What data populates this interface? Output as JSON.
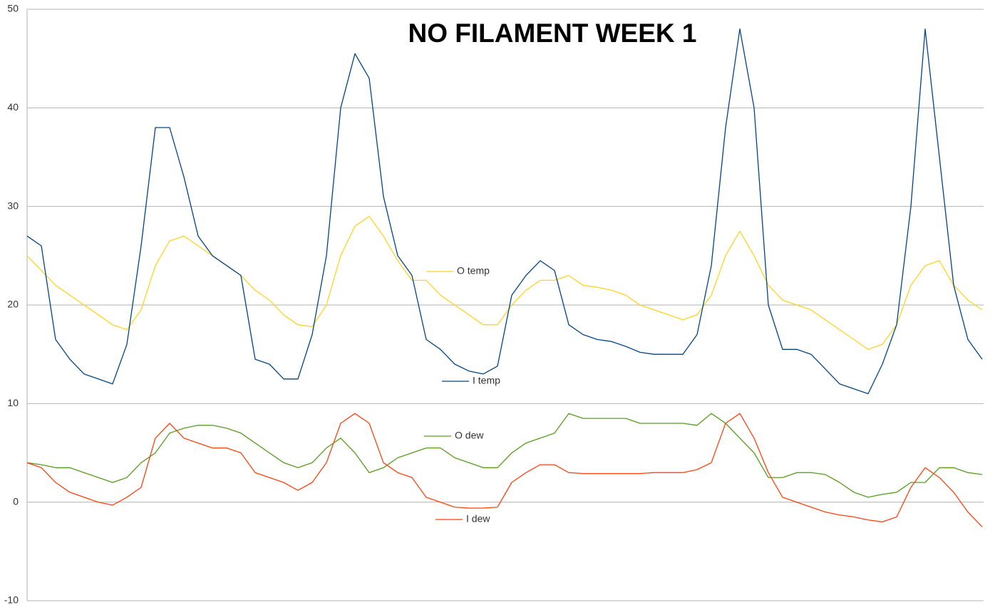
{
  "chart_data": {
    "type": "line",
    "title": "NO FILAMENT WEEK 1",
    "ylim": [
      -10,
      50
    ],
    "yticks": [
      -10,
      0,
      10,
      20,
      30,
      40,
      50
    ],
    "grid": true,
    "series": [
      {
        "name": "O temp",
        "color": "#ffd320",
        "values": [
          25,
          23.5,
          22,
          21,
          20,
          19,
          18,
          17.5,
          19.5,
          24,
          26.5,
          27,
          26,
          25,
          24,
          23,
          21.5,
          20.5,
          19,
          18,
          17.8,
          20,
          25,
          28,
          29,
          27,
          24.5,
          22.5,
          22.5,
          21,
          20,
          19,
          18,
          18,
          20,
          21.5,
          22.5,
          22.5,
          23,
          22,
          21.8,
          21.5,
          21,
          20,
          19.5,
          19,
          18.5,
          19,
          21,
          25,
          27.5,
          25,
          22,
          20.5,
          20,
          19.5,
          18.5,
          17.5,
          16.5,
          15.5,
          16,
          18,
          22,
          24,
          24.5,
          22,
          20.5,
          19.5
        ]
      },
      {
        "name": "I temp",
        "color": "#004586",
        "values": [
          27,
          26,
          16.5,
          14.5,
          13,
          12.5,
          12,
          16,
          26,
          38,
          38,
          33,
          27,
          25,
          24,
          23,
          14.5,
          14,
          12.5,
          12.5,
          17,
          25,
          40,
          45.5,
          43,
          31,
          25,
          23,
          16.5,
          15.5,
          14,
          13.3,
          13,
          13.8,
          21,
          23,
          24.5,
          23.5,
          18,
          17,
          16.5,
          16.3,
          15.8,
          15.2,
          15,
          15,
          15,
          17,
          24,
          38,
          48,
          40,
          20,
          15.5,
          15.5,
          15,
          13.5,
          12,
          11.5,
          11,
          14,
          18,
          30,
          48,
          35,
          22,
          16.5,
          14.5
        ]
      },
      {
        "name": "O dew",
        "color": "#579d1c",
        "values": [
          4,
          3.8,
          3.5,
          3.5,
          3,
          2.5,
          2,
          2.5,
          4,
          5,
          7,
          7.5,
          7.8,
          7.8,
          7.5,
          7,
          6,
          5,
          4,
          3.5,
          4,
          5.5,
          6.5,
          5,
          3,
          3.5,
          4.5,
          5,
          5.5,
          5.5,
          4.5,
          4,
          3.5,
          3.5,
          5,
          6,
          6.5,
          7,
          9,
          8.5,
          8.5,
          8.5,
          8.5,
          8,
          8,
          8,
          8,
          7.8,
          9,
          8,
          6.5,
          5,
          2.5,
          2.5,
          3,
          3,
          2.8,
          2,
          1,
          0.5,
          0.8,
          1,
          2,
          2,
          3.5,
          3.5,
          3,
          2.8
        ]
      },
      {
        "name": "I dew",
        "color": "#ff420e",
        "values": [
          4,
          3.5,
          2,
          1,
          0.5,
          0,
          -0.3,
          0.5,
          1.5,
          6.5,
          8,
          6.5,
          6,
          5.5,
          5.5,
          5,
          3,
          2.5,
          2,
          1.2,
          2,
          4,
          8,
          9,
          8,
          4,
          3,
          2.5,
          0.5,
          0,
          -0.5,
          -0.6,
          -0.6,
          -0.5,
          2,
          3,
          3.8,
          3.8,
          3,
          2.9,
          2.9,
          2.9,
          2.9,
          2.9,
          3,
          3,
          3,
          3.3,
          4,
          8,
          9,
          6.5,
          3,
          0.5,
          0,
          -0.5,
          -1,
          -1.3,
          -1.5,
          -1.8,
          -2,
          -1.5,
          1.5,
          3.5,
          2.5,
          1,
          -1,
          -2.5
        ]
      }
    ]
  }
}
